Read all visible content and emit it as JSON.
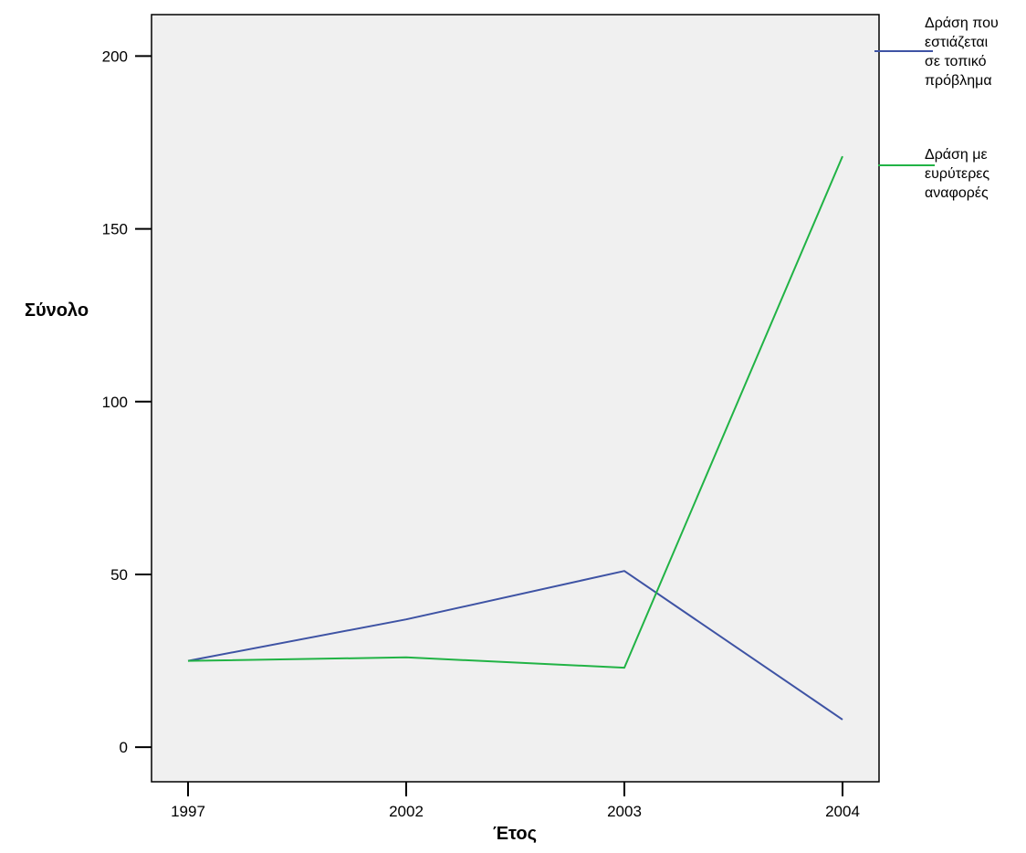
{
  "chart_data": {
    "type": "line",
    "categories": [
      "1997",
      "2002",
      "2003",
      "2004"
    ],
    "series": [
      {
        "name": "Δράση που εστιάζεται σε τοπικό πρόβλημα",
        "name_lines": [
          "Δράση που",
          "εστιάζεται",
          "σε τοπικό",
          "πρόβλημα"
        ],
        "color": "#3e53a4",
        "values": [
          25,
          37,
          51,
          8
        ]
      },
      {
        "name": "Δράση με ευρύτερες αναφορές",
        "name_lines": [
          "Δράση με",
          "ευρύτερες",
          "αναφορές"
        ],
        "color": "#21b345",
        "values": [
          25,
          26,
          23,
          171
        ]
      }
    ],
    "xlabel": "Έτος",
    "ylabel": "Σύνολο",
    "yticks": [
      0,
      50,
      100,
      150,
      200
    ],
    "ylim": [
      -10,
      212
    ],
    "grid": false,
    "background": "#f0f0f0",
    "legend_position": "right"
  }
}
